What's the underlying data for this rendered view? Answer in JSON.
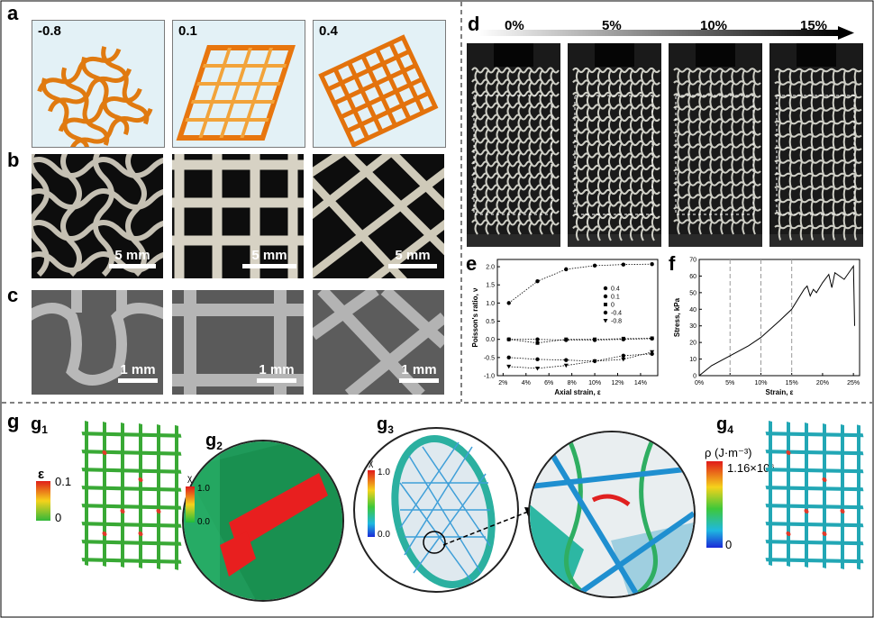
{
  "panels": {
    "a": {
      "label": "a",
      "tiles": [
        "-0.8",
        "0.1",
        "0.4"
      ]
    },
    "b": {
      "label": "b",
      "scalebars": [
        "5 mm",
        "5 mm",
        "5 mm"
      ]
    },
    "c": {
      "label": "c",
      "scalebars": [
        "1 mm",
        "1 mm",
        "1 mm"
      ]
    },
    "d": {
      "label": "d",
      "strains": [
        "0%",
        "5%",
        "10%",
        "15%"
      ]
    },
    "e": {
      "label": "e"
    },
    "f": {
      "label": "f"
    },
    "g": {
      "label": "g",
      "sublabels": [
        "g1",
        "g2",
        "g3",
        "g4"
      ],
      "g1_scale": {
        "symbol": "ε",
        "max": "0.1",
        "min": "0"
      },
      "g2_scale": {
        "symbol": "χ",
        "max": "1.0",
        "min": "0.0"
      },
      "g3_scale": {
        "symbol": "χ",
        "max": "1.0",
        "min": "0.0"
      },
      "g4_scale": {
        "symbol": "ρ (J·m⁻³)",
        "max": "1.16×10⁶",
        "min": "0"
      }
    }
  },
  "chart_data": [
    {
      "type": "scatter",
      "panel": "e",
      "xlabel": "Axial strain, ε",
      "ylabel": "Poisson's ratio, ν",
      "xticks": [
        "2%",
        "4%",
        "6%",
        "8%",
        "10%",
        "12%",
        "14%"
      ],
      "yticks": [
        "-1.0",
        "-0.5",
        "0.0",
        "0.5",
        "1.0",
        "1.5",
        "2.0"
      ],
      "xlim": [
        0.015,
        0.155
      ],
      "ylim": [
        -1.0,
        2.2
      ],
      "legend": [
        "0.4",
        "0.1",
        "0",
        "-0.4",
        "-0.8"
      ],
      "legend_position": "right",
      "series": [
        {
          "name": "0.4",
          "marker": "circle",
          "x": [
            0.025,
            0.05,
            0.075,
            0.1,
            0.125,
            0.15
          ],
          "y": [
            1.0,
            1.6,
            1.93,
            2.03,
            2.06,
            2.07
          ]
        },
        {
          "name": "0.1",
          "marker": "circle",
          "x": [
            0.025,
            0.05,
            0.075,
            0.1,
            0.125,
            0.15
          ],
          "y": [
            0.0,
            0.0,
            -0.02,
            -0.02,
            0.0,
            0.02
          ]
        },
        {
          "name": "0",
          "marker": "square",
          "x": [
            0.025,
            0.05,
            0.075,
            0.1,
            0.125,
            0.15
          ],
          "y": [
            0.0,
            -0.1,
            0.0,
            0.0,
            0.02,
            0.03
          ]
        },
        {
          "name": "-0.4",
          "marker": "circle",
          "x": [
            0.025,
            0.05,
            0.075,
            0.1,
            0.125,
            0.15
          ],
          "y": [
            -0.5,
            -0.55,
            -0.57,
            -0.6,
            -0.45,
            -0.4
          ]
        },
        {
          "name": "-0.8",
          "marker": "triangle-down",
          "x": [
            0.025,
            0.05,
            0.075,
            0.1,
            0.125,
            0.15
          ],
          "y": [
            -0.75,
            -0.8,
            -0.72,
            -0.6,
            -0.55,
            -0.35
          ]
        }
      ]
    },
    {
      "type": "line",
      "panel": "f",
      "xlabel": "Strain, ε",
      "ylabel": "Stress, kPa",
      "xticks": [
        "0%",
        "5%",
        "10%",
        "15%",
        "20%",
        "25%"
      ],
      "yticks": [
        "0",
        "10",
        "20",
        "30",
        "40",
        "50",
        "60",
        "70"
      ],
      "xlim": [
        0,
        0.26
      ],
      "ylim": [
        0,
        70
      ],
      "vlines": [
        0.05,
        0.1,
        0.15
      ],
      "series": [
        {
          "name": "",
          "x": [
            0,
            0.02,
            0.05,
            0.08,
            0.1,
            0.13,
            0.15,
            0.17,
            0.175,
            0.18,
            0.185,
            0.19,
            0.2,
            0.21,
            0.215,
            0.22,
            0.235,
            0.25,
            0.252
          ],
          "y": [
            0,
            6,
            12,
            18,
            23,
            33,
            40,
            52,
            54,
            48,
            52,
            50,
            56,
            61,
            53,
            62,
            58,
            66,
            30
          ]
        }
      ]
    }
  ]
}
